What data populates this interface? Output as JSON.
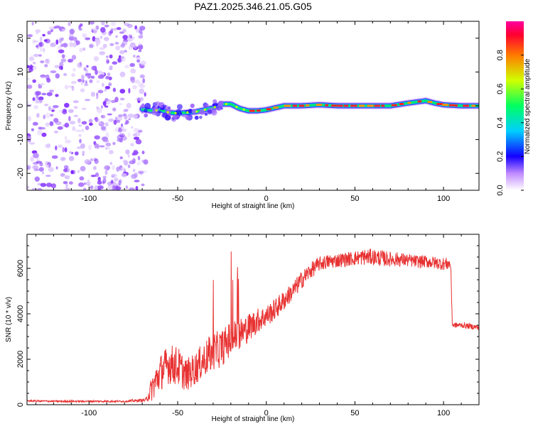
{
  "title": "PAZ1.2025.346.21.05.G05",
  "chart_data": [
    {
      "type": "heatmap",
      "name": "spectrogram",
      "xlabel": "Height of straight line (km)",
      "ylabel": "Frequency (Hz)",
      "xlim": [
        -135,
        120
      ],
      "ylim": [
        -25,
        25
      ],
      "xticks": [
        -100,
        -50,
        0,
        50,
        100
      ],
      "yticks": [
        -20,
        -10,
        0,
        10,
        20
      ],
      "noise_region_x": [
        -135,
        -68
      ],
      "signal_track": {
        "x": [
          -70,
          -65,
          -60,
          -55,
          -50,
          -45,
          -40,
          -35,
          -30,
          -25,
          -20,
          -15,
          -10,
          -5,
          0,
          5,
          10,
          20,
          30,
          40,
          50,
          60,
          70,
          80,
          90,
          95,
          100,
          110,
          120
        ],
        "freq": [
          -1.0,
          -1.5,
          -1.2,
          -2.0,
          -2.2,
          -2.0,
          -1.8,
          -1.2,
          -0.6,
          0.5,
          0.5,
          -0.8,
          -1.5,
          -1.5,
          -1.2,
          -0.6,
          0,
          0,
          0.3,
          0,
          0,
          0,
          0,
          0.8,
          1.5,
          0.8,
          0.3,
          0,
          0
        ]
      },
      "colorbar": {
        "label": "Normalized spectral amplitude",
        "range": [
          0,
          1
        ],
        "ticks": [
          "0.0",
          "0.2",
          "0.4",
          "0.6",
          "0.8"
        ]
      }
    },
    {
      "type": "line",
      "name": "snr",
      "xlabel": "Height of straight line (km)",
      "ylabel": "SNR (10 * v/v)",
      "xlim": [
        -135,
        120
      ],
      "ylim": [
        0,
        7500
      ],
      "xticks": [
        -100,
        -50,
        0,
        50,
        100
      ],
      "yticks": [
        0,
        2000,
        4000,
        6000
      ],
      "series": [
        {
          "name": "SNR",
          "color": "#e83232",
          "x": [
            -135,
            -120,
            -100,
            -80,
            -68,
            -64,
            -60,
            -55,
            -50,
            -45,
            -40,
            -35,
            -30,
            -25,
            -20,
            -15,
            -10,
            -5,
            0,
            5,
            10,
            15,
            20,
            25,
            30,
            35,
            40,
            45,
            50,
            55,
            60,
            65,
            70,
            75,
            80,
            85,
            90,
            95,
            100,
            104,
            105,
            110,
            115,
            120
          ],
          "values": [
            170,
            150,
            150,
            150,
            200,
            800,
            1400,
            1800,
            1700,
            1300,
            1600,
            2000,
            2300,
            2500,
            2900,
            3100,
            3400,
            3700,
            3900,
            4200,
            4600,
            5000,
            5500,
            5900,
            6200,
            6300,
            6350,
            6400,
            6450,
            6500,
            6500,
            6450,
            6400,
            6400,
            6350,
            6300,
            6300,
            6250,
            6200,
            6200,
            3500,
            3500,
            3450,
            3400
          ],
          "spread": [
            50,
            50,
            50,
            50,
            100,
            800,
            1000,
            1100,
            1100,
            900,
            900,
            1000,
            1100,
            1000,
            1000,
            900,
            800,
            700,
            600,
            600,
            550,
            500,
            500,
            450,
            400,
            400,
            400,
            400,
            400,
            450,
            450,
            450,
            400,
            400,
            350,
            350,
            350,
            350,
            350,
            350,
            150,
            150,
            150,
            150
          ]
        }
      ]
    }
  ]
}
